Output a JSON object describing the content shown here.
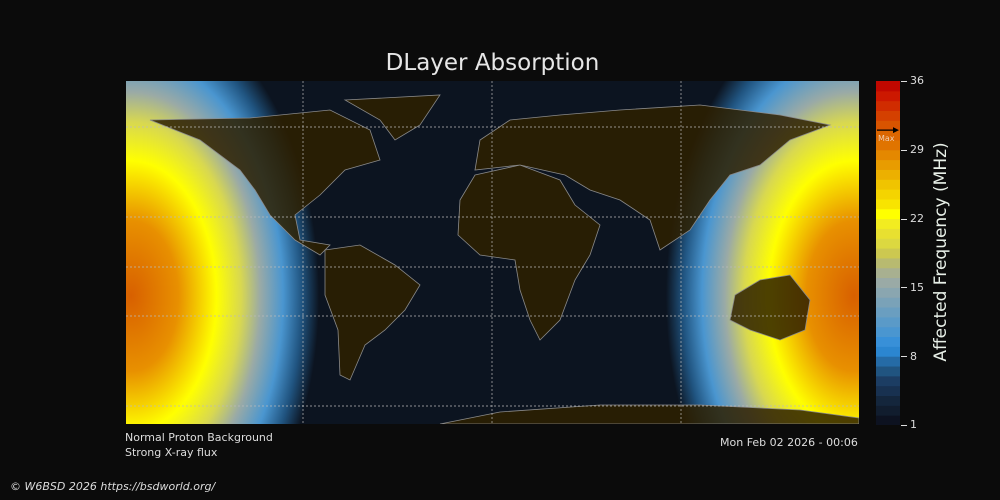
{
  "title": "DLayer Absorption",
  "colorbar": {
    "label": "Affected Frequency (MHz)",
    "ticks": [
      "36",
      "29",
      "22",
      "15",
      "8",
      "1"
    ],
    "min": 1,
    "max": 36,
    "max_marker_label": "Max",
    "max_marker_value": 31,
    "colors": [
      "#0d1220",
      "#111d2e",
      "#14263c",
      "#183150",
      "#1c3d63",
      "#205480",
      "#256ba6",
      "#2b86d0",
      "#3890d8",
      "#4a96d0",
      "#5a9ac8",
      "#6a9ec0",
      "#7aa2b8",
      "#8aa6b0",
      "#9aaaa6",
      "#a8b090",
      "#b8ba70",
      "#ccc850",
      "#dcd840",
      "#e8e030",
      "#f2ec20",
      "#ffff00",
      "#f8e400",
      "#f4d400",
      "#f0c400",
      "#ecb000",
      "#e89c00",
      "#e48800",
      "#e07400",
      "#dc6600",
      "#d85400",
      "#d44000",
      "#d02c00",
      "#cc1800",
      "#c00800"
    ]
  },
  "notes": {
    "line1": "Normal Proton Background",
    "line2": "Strong X-ray flux",
    "timestamp": "Mon Feb 02 2026 - 00:06"
  },
  "credit": "© W6BSD 2026 https://bsdworld.org/",
  "map_colors": {
    "ocean": "#0c1420",
    "land": "#2e2000",
    "coast": "#8a8a8a",
    "grid": "#bbbbbb"
  }
}
